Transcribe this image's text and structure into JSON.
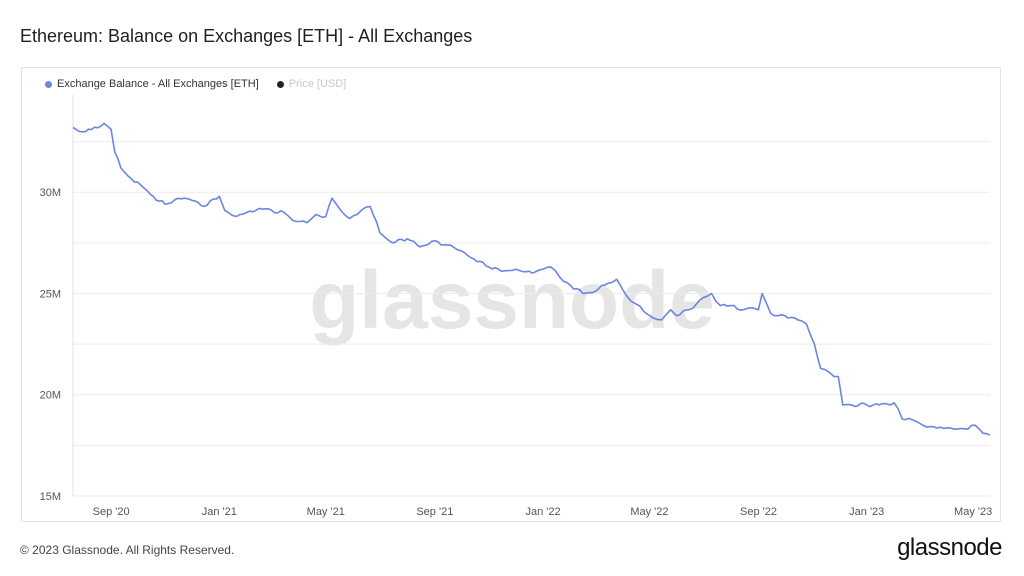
{
  "title": "Ethereum: Balance on Exchanges [ETH] - All Exchanges",
  "footer": "© 2023 Glassnode. All Rights Reserved.",
  "brand": "glassnode",
  "watermark": "glassnode",
  "colors": {
    "series": "#6b85e2",
    "price": "#222222",
    "grid": "#ececec"
  },
  "legend": [
    {
      "label": "Exchange Balance - All Exchanges [ETH]",
      "color": "#6b85e2",
      "active": true
    },
    {
      "label": "Price [USD]",
      "color": "#222222",
      "active": false
    }
  ],
  "chart_data": {
    "type": "line",
    "title": "Ethereum: Balance on Exchanges [ETH] - All Exchanges",
    "xlabel": "",
    "ylabel": "",
    "y_ticks": [
      {
        "value": 15000000,
        "label": "15M"
      },
      {
        "value": 20000000,
        "label": "20M"
      },
      {
        "value": 25000000,
        "label": "25M"
      },
      {
        "value": 30000000,
        "label": "30M"
      }
    ],
    "ylim": [
      15000000,
      34800000
    ],
    "xlim": [
      "2020-07-20",
      "2023-05-20"
    ],
    "x_ticks": [
      {
        "date": "2020-09-01",
        "label": "Sep '20"
      },
      {
        "date": "2021-01-01",
        "label": "Jan '21"
      },
      {
        "date": "2021-05-01",
        "label": "May '21"
      },
      {
        "date": "2021-09-01",
        "label": "Sep '21"
      },
      {
        "date": "2022-01-01",
        "label": "Jan '22"
      },
      {
        "date": "2022-05-01",
        "label": "May '22"
      },
      {
        "date": "2022-09-01",
        "label": "Sep '22"
      },
      {
        "date": "2023-01-01",
        "label": "Jan '23"
      },
      {
        "date": "2023-05-01",
        "label": "May '23"
      }
    ],
    "grid": true,
    "legend_position": "top-left",
    "series": [
      {
        "name": "Exchange Balance - All Exchanges [ETH]",
        "color": "#6b85e2",
        "points": [
          [
            "2020-07-20",
            33200000
          ],
          [
            "2020-07-27",
            33000000
          ],
          [
            "2020-08-10",
            33100000
          ],
          [
            "2020-08-24",
            33400000
          ],
          [
            "2020-09-01",
            33100000
          ],
          [
            "2020-09-05",
            32000000
          ],
          [
            "2020-09-12",
            31200000
          ],
          [
            "2020-09-20",
            30800000
          ],
          [
            "2020-10-01",
            30500000
          ],
          [
            "2020-10-15",
            29900000
          ],
          [
            "2020-11-01",
            29400000
          ],
          [
            "2020-11-15",
            29700000
          ],
          [
            "2020-12-01",
            29600000
          ],
          [
            "2020-12-15",
            29300000
          ],
          [
            "2021-01-01",
            29800000
          ],
          [
            "2021-01-07",
            29100000
          ],
          [
            "2021-01-20",
            28800000
          ],
          [
            "2021-02-01",
            29000000
          ],
          [
            "2021-02-15",
            29200000
          ],
          [
            "2021-03-01",
            29100000
          ],
          [
            "2021-03-15",
            29000000
          ],
          [
            "2021-03-25",
            28600000
          ],
          [
            "2021-04-10",
            28500000
          ],
          [
            "2021-04-20",
            28900000
          ],
          [
            "2021-05-01",
            28800000
          ],
          [
            "2021-05-08",
            29700000
          ],
          [
            "2021-05-20",
            29000000
          ],
          [
            "2021-05-28",
            28700000
          ],
          [
            "2021-06-10",
            29100000
          ],
          [
            "2021-06-20",
            29300000
          ],
          [
            "2021-07-01",
            28000000
          ],
          [
            "2021-07-15",
            27500000
          ],
          [
            "2021-08-01",
            27700000
          ],
          [
            "2021-08-15",
            27300000
          ],
          [
            "2021-09-01",
            27600000
          ],
          [
            "2021-09-15",
            27400000
          ],
          [
            "2021-10-01",
            27100000
          ],
          [
            "2021-10-15",
            26700000
          ],
          [
            "2021-11-01",
            26300000
          ],
          [
            "2021-11-15",
            26100000
          ],
          [
            "2021-12-01",
            26200000
          ],
          [
            "2021-12-20",
            26000000
          ],
          [
            "2022-01-01",
            26200000
          ],
          [
            "2022-01-10",
            26300000
          ],
          [
            "2022-01-20",
            25800000
          ],
          [
            "2022-02-01",
            25400000
          ],
          [
            "2022-02-15",
            25000000
          ],
          [
            "2022-03-01",
            25100000
          ],
          [
            "2022-03-15",
            25500000
          ],
          [
            "2022-03-25",
            25700000
          ],
          [
            "2022-04-05",
            24900000
          ],
          [
            "2022-04-15",
            24500000
          ],
          [
            "2022-04-25",
            24100000
          ],
          [
            "2022-05-05",
            23800000
          ],
          [
            "2022-05-15",
            23700000
          ],
          [
            "2022-05-25",
            24200000
          ],
          [
            "2022-06-01",
            23900000
          ],
          [
            "2022-06-15",
            24200000
          ],
          [
            "2022-07-01",
            24800000
          ],
          [
            "2022-07-10",
            25000000
          ],
          [
            "2022-07-20",
            24400000
          ],
          [
            "2022-08-01",
            24400000
          ],
          [
            "2022-08-15",
            24200000
          ],
          [
            "2022-08-25",
            24300000
          ],
          [
            "2022-09-01",
            24200000
          ],
          [
            "2022-09-05",
            25000000
          ],
          [
            "2022-09-15",
            24000000
          ],
          [
            "2022-10-01",
            23900000
          ],
          [
            "2022-10-15",
            23700000
          ],
          [
            "2022-10-25",
            23500000
          ],
          [
            "2022-11-03",
            22500000
          ],
          [
            "2022-11-10",
            21300000
          ],
          [
            "2022-11-20",
            21100000
          ],
          [
            "2022-11-30",
            20900000
          ],
          [
            "2022-12-05",
            19500000
          ],
          [
            "2022-12-15",
            19500000
          ],
          [
            "2023-01-01",
            19500000
          ],
          [
            "2023-01-15",
            19500000
          ],
          [
            "2023-02-01",
            19600000
          ],
          [
            "2023-02-10",
            18800000
          ],
          [
            "2023-02-25",
            18700000
          ],
          [
            "2023-03-10",
            18400000
          ],
          [
            "2023-03-25",
            18400000
          ],
          [
            "2023-04-10",
            18300000
          ],
          [
            "2023-04-25",
            18300000
          ],
          [
            "2023-05-03",
            18500000
          ],
          [
            "2023-05-12",
            18100000
          ],
          [
            "2023-05-20",
            18000000
          ]
        ]
      }
    ]
  }
}
